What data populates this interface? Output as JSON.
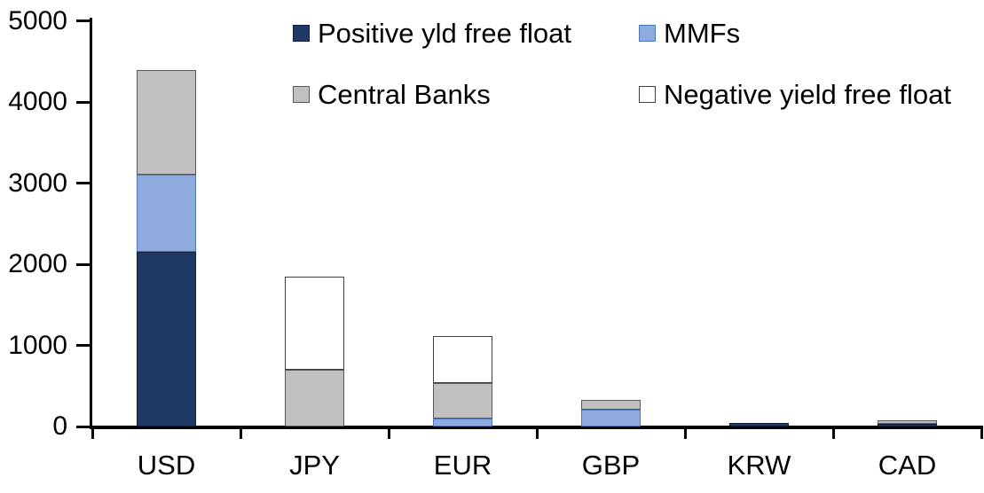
{
  "chart_data": {
    "type": "bar",
    "stacked": true,
    "title": "",
    "xlabel": "",
    "ylabel": "",
    "categories": [
      "USD",
      "JPY",
      "EUR",
      "GBP",
      "KRW",
      "CAD"
    ],
    "series": [
      {
        "name": "Positive yld free float",
        "fill": "#1F3864",
        "border": "#10203C",
        "values": [
          2150,
          0,
          0,
          0,
          45,
          30
        ]
      },
      {
        "name": "MMFs",
        "fill": "#8FAADC",
        "border": "#4D78B8",
        "values": [
          950,
          0,
          100,
          210,
          0,
          0
        ]
      },
      {
        "name": "Central Banks",
        "fill": "#C0C0C0",
        "border": "#595959",
        "values": [
          1290,
          700,
          440,
          120,
          0,
          45
        ]
      },
      {
        "name": "Negative yield free float",
        "fill": "#FFFFFF",
        "border": "#404040",
        "values": [
          0,
          1150,
          575,
          0,
          0,
          0
        ]
      }
    ],
    "ylim": [
      0,
      5000
    ],
    "yticks": [
      0,
      1000,
      2000,
      3000,
      4000,
      5000
    ],
    "grid": false,
    "legend_position": "top",
    "axis_color": "#000000",
    "text_color": "#000000",
    "background": "#FFFFFF"
  }
}
